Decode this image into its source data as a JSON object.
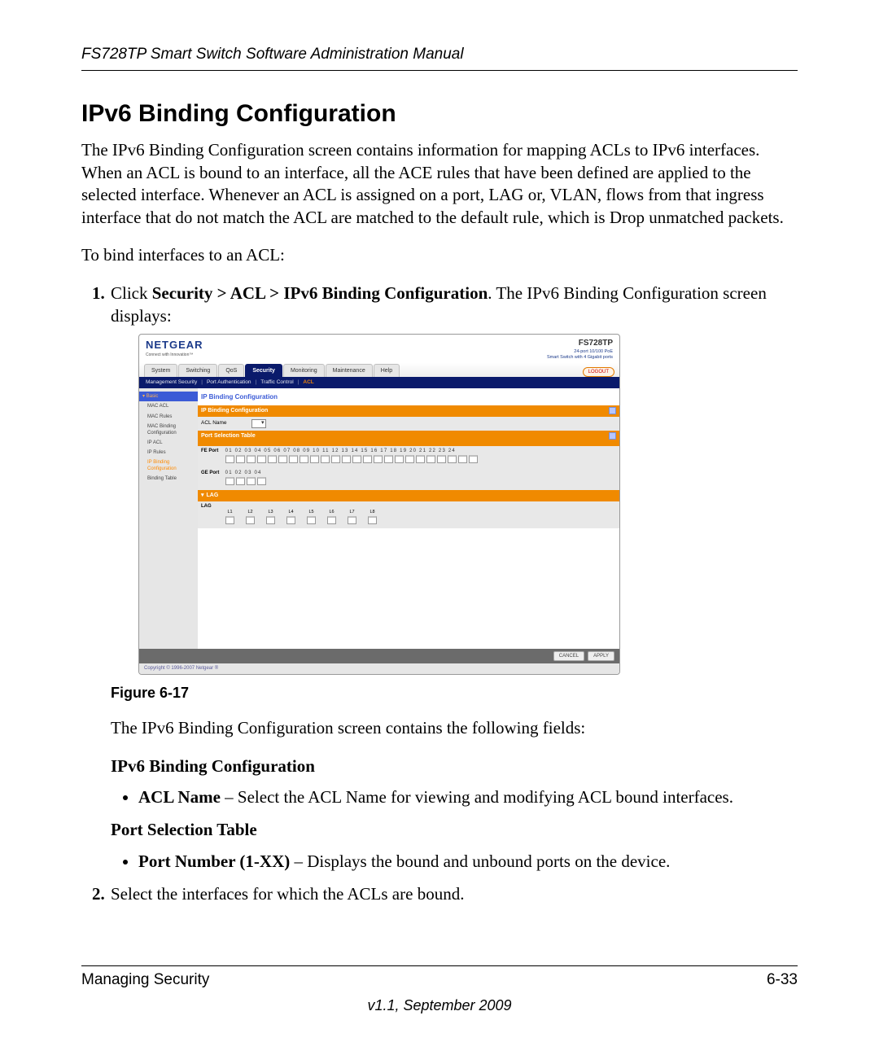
{
  "running_head": "FS728TP Smart Switch Software Administration Manual",
  "section_title": "IPv6 Binding Configuration",
  "intro": "The IPv6 Binding Configuration screen contains information for mapping ACLs to IPv6 interfaces. When an ACL is bound to an interface, all the ACE rules that have been defined are applied to the selected interface. Whenever an ACL is assigned on a port, LAG or, VLAN, flows from that ingress interface that do not match the ACL are matched to the default rule, which is Drop unmatched packets.",
  "lead_in": "To bind interfaces to an ACL:",
  "step1_prefix": "Click ",
  "step1_path": "Security > ACL > IPv6 Binding Configuration",
  "step1_suffix": ". The IPv6 Binding Configuration screen displays:",
  "figure_caption": "Figure 6-17",
  "after_figure": "The IPv6 Binding Configuration screen contains the following fields:",
  "subhead1": "IPv6 Binding Configuration",
  "field1_name": "ACL Name",
  "field1_desc": " – Select the ACL Name for viewing and modifying ACL bound interfaces.",
  "subhead2": "Port Selection Table",
  "field2_name": "Port Number (1-XX)",
  "field2_desc": " – Displays the bound and unbound ports on the device.",
  "step2": "Select the interfaces for which the ACLs are bound.",
  "footer_left": "Managing Security",
  "footer_right": "6-33",
  "footer_version": "v1.1, September 2009",
  "shot": {
    "brand": "NETGEAR",
    "brand_sub": "Connect with Innovation™",
    "model": "FS728TP",
    "model_line1": "24-port 10/100 PoE",
    "model_line2": "Smart Switch with 4 Gigabit ports",
    "tabs": [
      "System",
      "Switching",
      "QoS",
      "Security",
      "Monitoring",
      "Maintenance",
      "Help"
    ],
    "tab_active_index": 3,
    "logout": "LOGOUT",
    "subnav": [
      "Management Security",
      "Port Authentication",
      "Traffic Control",
      "ACL"
    ],
    "subnav_selected_index": 3,
    "sidebar_group": "Basic",
    "sidebar_items": [
      "MAC ACL",
      "MAC Rules",
      "MAC Binding Configuration",
      "IP ACL",
      "IP Rules",
      "IP Binding Configuration",
      "Binding Table"
    ],
    "sidebar_selected_index": 5,
    "panel_title": "IP Binding Configuration",
    "bar1": "IP Binding Configuration",
    "acl_name_label": "ACL Name",
    "bar2": "Port Selection Table",
    "fe_label": "FE Port",
    "fe_ports": [
      "01",
      "02",
      "03",
      "04",
      "05",
      "06",
      "07",
      "08",
      "09",
      "10",
      "11",
      "12",
      "13",
      "14",
      "15",
      "16",
      "17",
      "18",
      "19",
      "20",
      "21",
      "22",
      "23",
      "24"
    ],
    "ge_label": "GE Port",
    "ge_ports": [
      "01",
      "02",
      "03",
      "04"
    ],
    "lag_bar": "LAG",
    "lag_label": "LAG",
    "lags": [
      "L1",
      "L2",
      "L3",
      "L4",
      "L5",
      "L6",
      "L7",
      "L8"
    ],
    "btn_cancel": "CANCEL",
    "btn_apply": "APPLY",
    "copyright": "Copyright © 1996-2007 Netgear ®",
    "colors": {
      "navy": "#0a1a6b",
      "orange": "#f08a00",
      "orange_text": "#ff8a00",
      "grey_bg": "#e6e6e6",
      "grey_bar": "#6b6b6b"
    }
  }
}
